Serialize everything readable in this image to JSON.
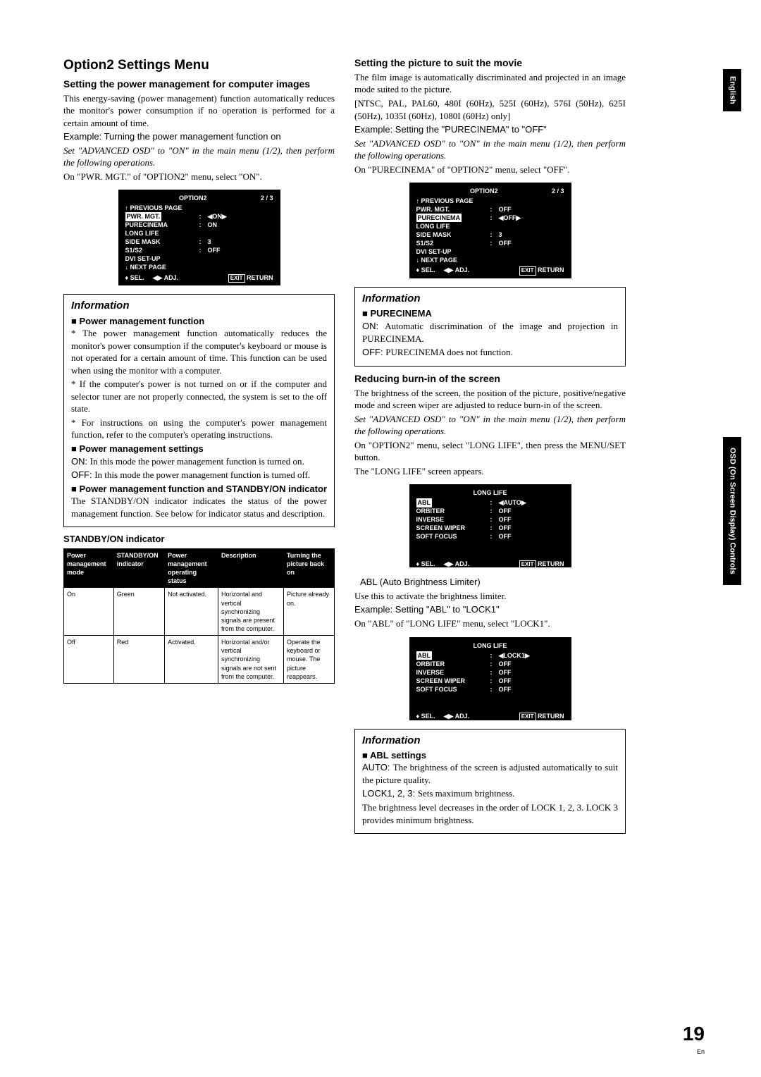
{
  "page": {
    "number": "19",
    "lang": "En"
  },
  "tabs": {
    "english": "English",
    "osd": "OSD (On Screen Display) Controls"
  },
  "left": {
    "h1": "Option2 Settings Menu",
    "sec1_h2": "Setting the power management for computer images",
    "sec1_p1": "This energy-saving (power management) function automatically reduces the monitor's power consumption if no operation is performed for a certain amount of time.",
    "sec1_ex": "Example: Turning the power management function on",
    "sec1_it": "Set \"ADVANCED OSD\" to \"ON\" in the main menu (1/2), then perform the following operations.",
    "sec1_p2": "On \"PWR. MGT.\" of \"OPTION2\" menu, select \"ON\".",
    "osd1": {
      "title": "OPTION2",
      "page": "2 / 3",
      "rows": [
        {
          "l": "↑ PREVIOUS PAGE",
          "s": "",
          "v": ""
        },
        {
          "l": "PWR. MGT.",
          "s": ":",
          "v": "◀ON▶",
          "hl": true
        },
        {
          "l": "PURECINEMA",
          "s": ":",
          "v": "ON"
        },
        {
          "l": "LONG LIFE",
          "s": "",
          "v": ""
        },
        {
          "l": "SIDE MASK",
          "s": ":",
          "v": "3"
        },
        {
          "l": "S1/S2",
          "s": ":",
          "v": "OFF"
        },
        {
          "l": "DVI SET-UP",
          "s": "",
          "v": ""
        },
        {
          "l": "↓ NEXT PAGE",
          "s": "",
          "v": ""
        }
      ]
    },
    "info1": {
      "title": "Information",
      "s1": "Power management function",
      "b1": "* The power management function automatically reduces the monitor's power consumption if the computer's keyboard or mouse is not operated for a certain amount of time. This function can be used when using the monitor with a computer.",
      "b2": "* If the computer's power is not turned on or if the computer and selector tuner are not properly connected, the system is set to the off state.",
      "b3": "* For instructions on using the computer's power management function, refer to the computer's operating instructions.",
      "s2": "Power management settings",
      "p_on": "In this mode the power management function is turned on.",
      "p_off": "In this mode the power management function is turned off.",
      "s3": "Power management function and STANDBY/ON indicator",
      "p3": "The STANDBY/ON indicator indicates the status of the power management function. See below for indicator status and description."
    },
    "tbl_h": "STANDBY/ON indicator",
    "tbl": {
      "headers": [
        "Power management mode",
        "STANDBY/ON indicator",
        "Power management operating status",
        "Description",
        "Turning the picture back on"
      ],
      "rows": [
        [
          "On",
          "Green",
          "Not activated.",
          "Horizontal and vertical synchronizing signals are present from the computer.",
          "Picture already on."
        ],
        [
          "Off",
          "Red",
          "Activated.",
          "Horizontal and/or vertical synchronizing signals are not sent from the computer.",
          "Operate the keyboard or mouse. The picture reappears."
        ]
      ]
    }
  },
  "right": {
    "sec2_h2": "Setting the picture to suit the movie",
    "sec2_p1": "The film image is automatically discriminated and projected in an image mode suited to the picture.",
    "sec2_p2": "[NTSC, PAL, PAL60, 480I (60Hz), 525I (60Hz), 576I (50Hz), 625I (50Hz), 1035I (60Hz), 1080I (60Hz) only]",
    "sec2_ex": "Example: Setting the \"PURECINEMA\" to \"OFF\"",
    "sec2_it": "Set \"ADVANCED OSD\" to \"ON\" in the main menu (1/2), then perform the following operations.",
    "sec2_p3": "On \"PURECINEMA\" of \"OPTION2\" menu, select \"OFF\".",
    "osd2": {
      "title": "OPTION2",
      "page": "2 / 3",
      "rows": [
        {
          "l": "↑ PREVIOUS PAGE",
          "s": "",
          "v": ""
        },
        {
          "l": "PWR. MGT.",
          "s": ":",
          "v": "OFF"
        },
        {
          "l": "PURECINEMA",
          "s": ":",
          "v": "◀OFF▶",
          "hl": true
        },
        {
          "l": "LONG LIFE",
          "s": "",
          "v": ""
        },
        {
          "l": "SIDE MASK",
          "s": ":",
          "v": "3"
        },
        {
          "l": "S1/S2",
          "s": ":",
          "v": "OFF"
        },
        {
          "l": "DVI SET-UP",
          "s": "",
          "v": ""
        },
        {
          "l": "↓ NEXT PAGE",
          "s": "",
          "v": ""
        }
      ]
    },
    "info2": {
      "title": "Information",
      "s1": "PURECINEMA",
      "p_on": "Automatic discrimination of the image and projection in PURECINEMA.",
      "p_off": "PURECINEMA does not function."
    },
    "sec3_h2": "Reducing burn-in of the screen",
    "sec3_p1": "The brightness of the screen, the position of the picture, positive/negative mode and screen wiper are adjusted to reduce burn-in of the screen.",
    "sec3_it": "Set \"ADVANCED OSD\" to \"ON\" in the main menu (1/2), then perform the following operations.",
    "sec3_p2": "On \"OPTION2\" menu, select \"LONG LIFE\", then press the MENU/SET button.",
    "sec3_p3": "The \"LONG LIFE\" screen appears.",
    "osd3": {
      "title": "LONG LIFE",
      "rows": [
        {
          "l": "ABL",
          "s": ":",
          "v": "◀AUTO▶",
          "hl": true
        },
        {
          "l": "ORBITER",
          "s": ":",
          "v": "OFF"
        },
        {
          "l": "INVERSE",
          "s": ":",
          "v": "OFF"
        },
        {
          "l": "SCREEN WIPER",
          "s": ":",
          "v": "OFF"
        },
        {
          "l": "SOFT FOCUS",
          "s": ":",
          "v": "OFF"
        }
      ]
    },
    "abl_label": "ABL (Auto Brightness Limiter)",
    "sec3_p4": "Use this to activate the brightness limiter.",
    "sec3_ex": "Example: Setting \"ABL\" to \"LOCK1\"",
    "sec3_p5": "On \"ABL\" of \"LONG LIFE\" menu, select \"LOCK1\".",
    "osd4": {
      "title": "LONG LIFE",
      "rows": [
        {
          "l": "ABL",
          "s": ":",
          "v": "◀LOCK1▶",
          "hl": true
        },
        {
          "l": "ORBITER",
          "s": ":",
          "v": "OFF"
        },
        {
          "l": "INVERSE",
          "s": ":",
          "v": "OFF"
        },
        {
          "l": "SCREEN WIPER",
          "s": ":",
          "v": "OFF"
        },
        {
          "l": "SOFT FOCUS",
          "s": ":",
          "v": "OFF"
        }
      ]
    },
    "info3": {
      "title": "Information",
      "s1": "ABL settings",
      "p_auto": "The brightness of the screen is adjusted automatically to suit the picture quality.",
      "p_lock": "Sets maximum brightness.",
      "p_l2": "The brightness level decreases in the order of LOCK 1, 2, 3. LOCK 3 provides minimum brightness."
    }
  },
  "osd_foot": {
    "sel": "SEL.",
    "adj": "ADJ.",
    "exit": "EXIT",
    "ret": "RETURN"
  },
  "labels": {
    "on": "ON: ",
    "off": "OFF: ",
    "auto": "AUTO: ",
    "lock": "LOCK1, 2, 3: "
  }
}
